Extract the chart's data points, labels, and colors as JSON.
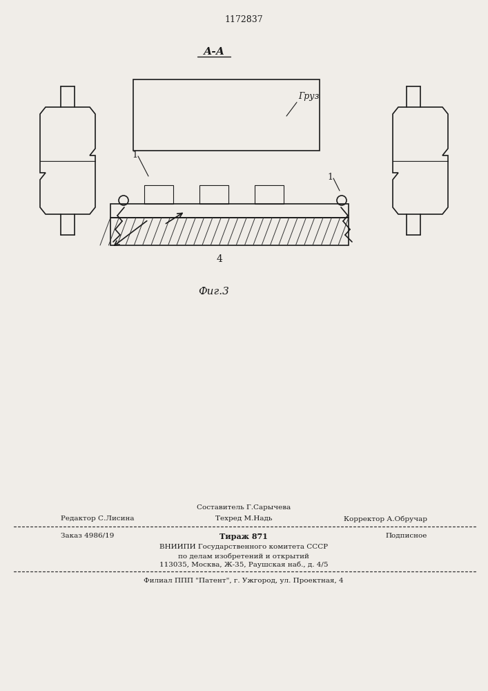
{
  "bg_color": "#f0ede8",
  "patent_number": "1172837",
  "section_label": "А-А",
  "fig_label": "Фиг.3",
  "label_gruz": "Груз",
  "label_1a": "1",
  "label_1b": "1",
  "label_4": "4",
  "footer_line0_center": "Составитель Г.Сарычева",
  "footer_line1_left": "Редактор С.Лисина",
  "footer_line1_center": "Техред М.Надь",
  "footer_line1_right": "Корректор А.Обручар",
  "footer_line2_left": "Заказ 4986/19",
  "footer_line2_center": "Тираж 871",
  "footer_line2_right": "Подписное",
  "footer_line3": "ВНИИПИ Государственного комитета СССР",
  "footer_line4": "по делам изобретений и открытий",
  "footer_line5": "113035, Москва, Ж-35, Раушская наб., д. 4/5",
  "footer_line6": "Филиал ППП \"Патент\", г. Ужгород, ул. Проектная, 4"
}
